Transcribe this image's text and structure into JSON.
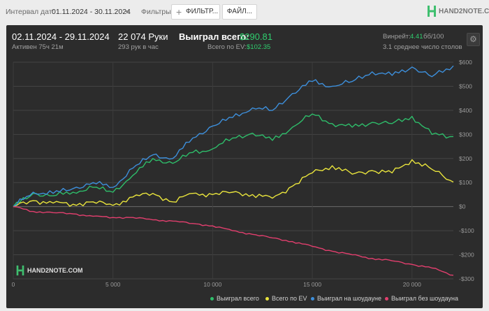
{
  "topbar": {
    "interval_label": "Интервал дат:",
    "interval_value": "01.11.2024 - 30.11.2024",
    "filters_label": "Фильтры:",
    "filter_button": "ФИЛЬТР...",
    "files_button": "ФАЙЛ...",
    "logo_text": "HAND2NOTE.COM"
  },
  "stats": {
    "date_range": "02.11.2024 - 29.11.2024",
    "active_time": "Активен 75ч 21м",
    "hands_count": "22 074 Руки",
    "hands_per_hour": "293 рук в час",
    "won_total_label": "Выиграл всего:",
    "won_total_value": "$290.81",
    "ev_label": "Всего по EV:",
    "ev_value": "$102.35",
    "winrate_label": "Винрейт:",
    "winrate_value": "4.41",
    "winrate_suffix": "бб/100",
    "tables_avg": "3.1 среднее число столов"
  },
  "colors": {
    "won_total": "#2ebd6a",
    "ev": "#e9e43c",
    "showdown": "#3d8fdb",
    "non_showdown": "#e23f6e",
    "accent_green": "#2fcf6f"
  },
  "chart_data": {
    "type": "line",
    "xlim": [
      0,
      22074
    ],
    "ylim": [
      -300,
      600
    ],
    "x_ticks": [
      0,
      5000,
      10000,
      15000,
      20000
    ],
    "x_tick_labels": [
      "0",
      "5 000",
      "10 000",
      "15 000",
      "20 000"
    ],
    "y_ticks": [
      600,
      500,
      400,
      300,
      200,
      100,
      0,
      -100,
      -200,
      -300
    ],
    "y_tick_labels": [
      "$600",
      "$500",
      "$400",
      "$300",
      "$200",
      "$100",
      "$0",
      "-$100",
      "-$200",
      "-$300"
    ],
    "grid": true,
    "legend_position": "bottom-right",
    "watermark": "HAND2NOTE.COM",
    "x": [
      0,
      1000,
      2000,
      3000,
      4000,
      5000,
      6000,
      7000,
      8000,
      9000,
      10000,
      11000,
      12000,
      13000,
      14000,
      15000,
      16000,
      17000,
      18000,
      19000,
      20000,
      21000,
      22074
    ],
    "series": [
      {
        "name": "Выиграл всего",
        "color": "#2ebd6a",
        "values": [
          0,
          55,
          45,
          60,
          80,
          60,
          130,
          200,
          180,
          225,
          240,
          285,
          305,
          275,
          330,
          385,
          345,
          330,
          350,
          345,
          375,
          300,
          291
        ]
      },
      {
        "name": "Всего по EV",
        "color": "#e9e43c",
        "values": [
          0,
          25,
          15,
          10,
          20,
          5,
          40,
          55,
          20,
          55,
          50,
          60,
          50,
          35,
          85,
          140,
          170,
          135,
          150,
          140,
          195,
          155,
          102
        ]
      },
      {
        "name": "Выиграл на шоудауне",
        "color": "#3d8fdb",
        "values": [
          0,
          60,
          55,
          75,
          100,
          80,
          160,
          215,
          200,
          285,
          335,
          370,
          410,
          400,
          470,
          520,
          500,
          520,
          560,
          545,
          580,
          540,
          585
        ]
      },
      {
        "name": "Выиграл без шоудауна",
        "color": "#e23f6e",
        "values": [
          0,
          -20,
          -25,
          -30,
          -40,
          -45,
          -45,
          -55,
          -60,
          -70,
          -80,
          -100,
          -115,
          -130,
          -145,
          -165,
          -185,
          -200,
          -215,
          -225,
          -240,
          -255,
          -285
        ]
      }
    ]
  }
}
